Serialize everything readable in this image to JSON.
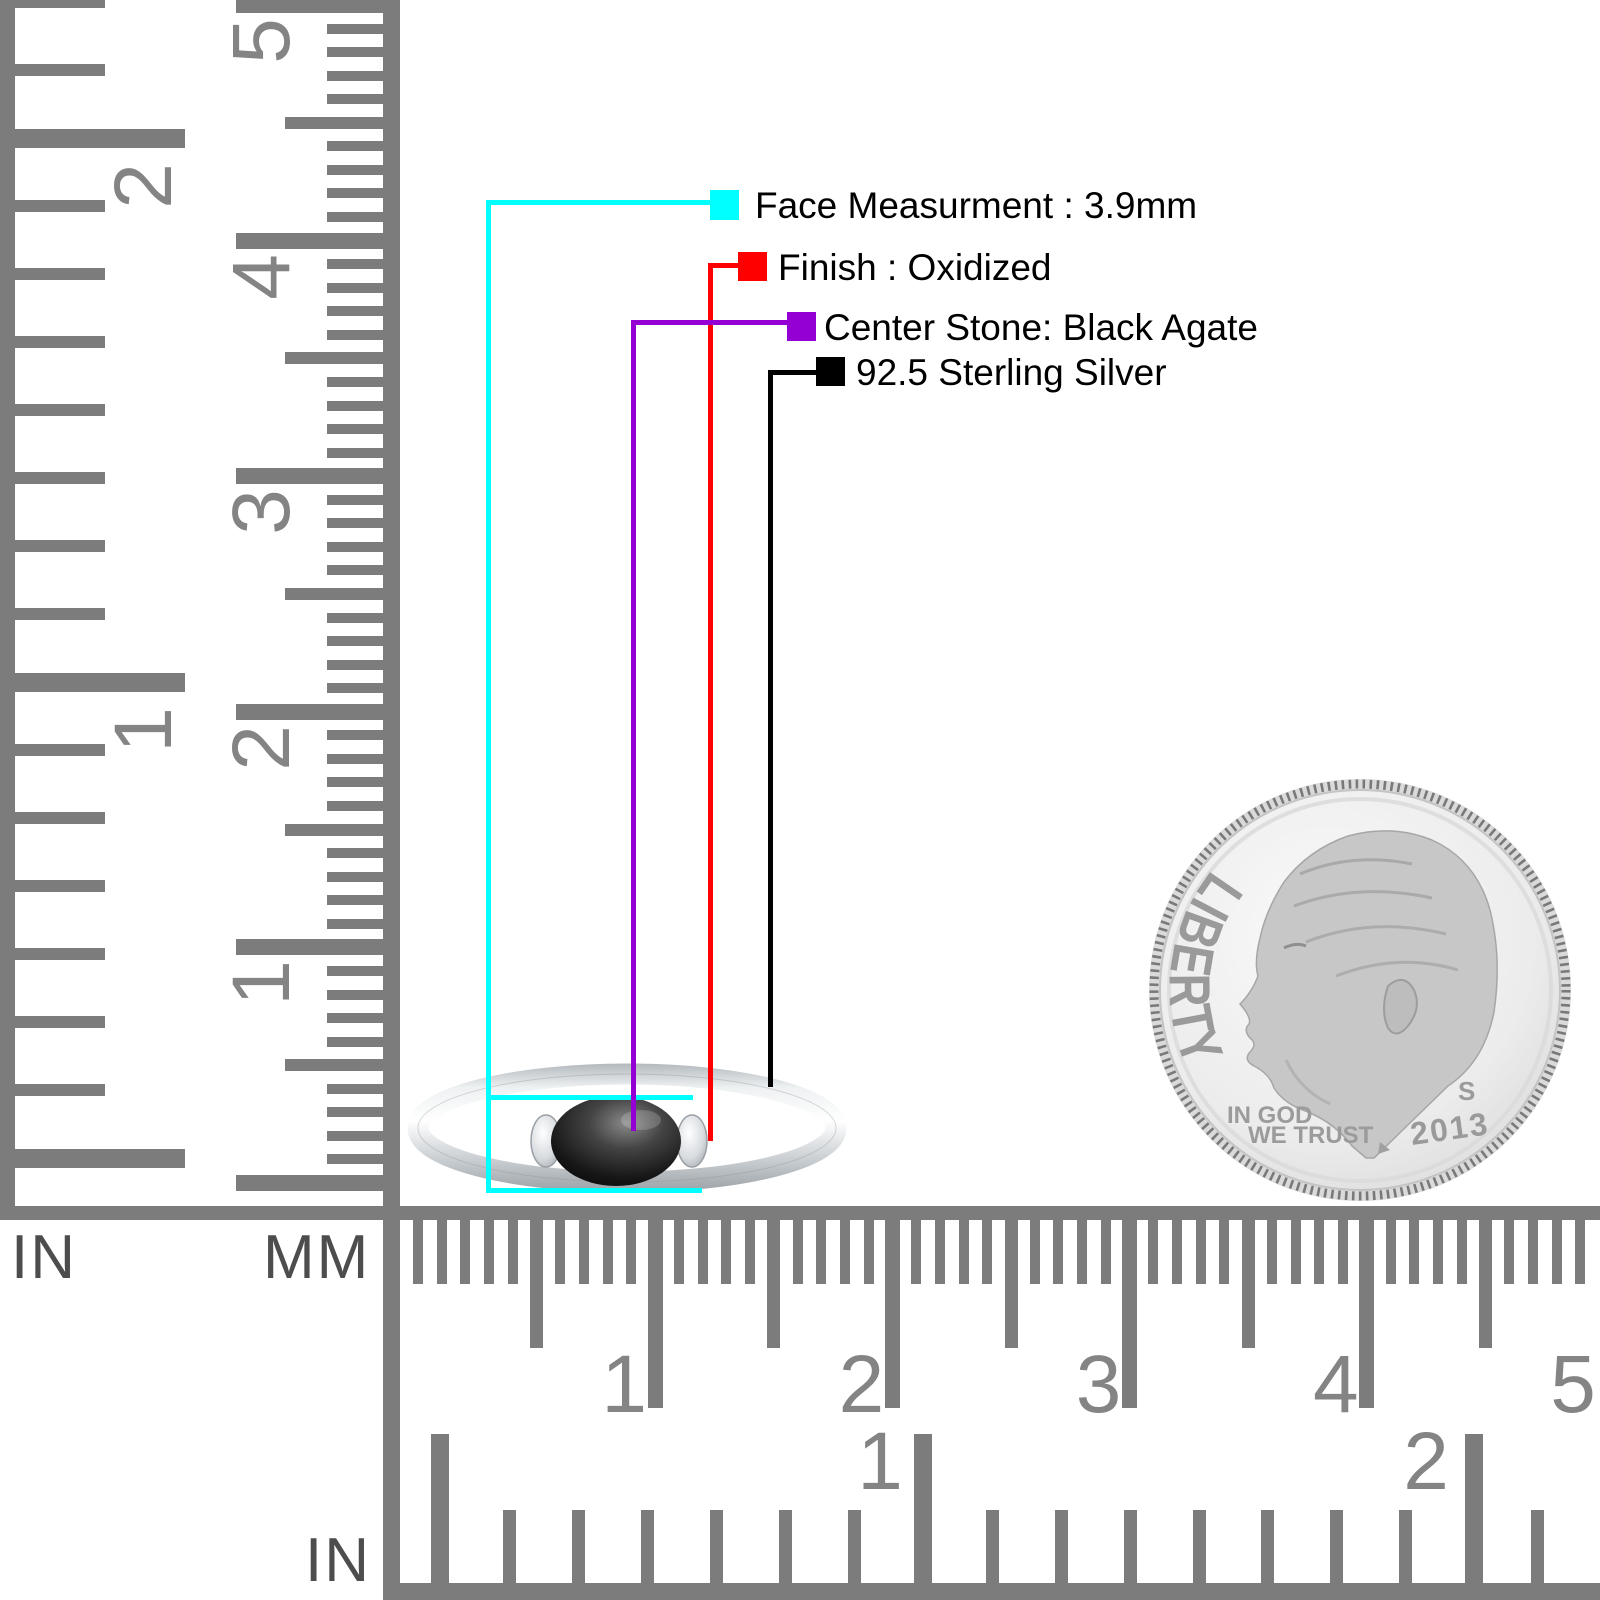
{
  "canvas": {
    "background": "#ffffff"
  },
  "callouts": {
    "text_color": "#000000",
    "items": [
      {
        "label": "Face Measurment : 3.9mm",
        "color": "#00ffff"
      },
      {
        "label": "Finish : Oxidized",
        "color": "#ff0000"
      },
      {
        "label": "Center Stone: Black Agate",
        "color": "#9400d3"
      },
      {
        "label": "92.5 Sterling Silver",
        "color": "#000000"
      }
    ]
  },
  "rulers": {
    "tick_color": "#7c7c7c",
    "number_color": "#848484",
    "unit_label_color": "#4d4d4d",
    "left_inch": {
      "unit": "IN",
      "numbers": [
        "2",
        "1"
      ]
    },
    "left_cm": {
      "unit": "MM",
      "numbers": [
        "5",
        "4",
        "3",
        "2",
        "1"
      ]
    },
    "bottom_cm": {
      "numbers": [
        "1",
        "2",
        "3",
        "4",
        "5"
      ]
    },
    "bottom_inch": {
      "unit": "IN",
      "numbers": [
        "1",
        "2"
      ]
    }
  },
  "coin": {
    "legend": "LIBERTY",
    "motto_line1": "IN GOD",
    "motto_line2": "WE TRUST",
    "mint_mark": "S",
    "year": "2013",
    "metal_color": "#e7e7e7",
    "relief_color": "#c7c7c7",
    "lettering_color": "#9a9a9a"
  },
  "ring": {
    "band_silver_light": "#f4f6f7",
    "band_silver_mid": "#c9ced2",
    "band_silver_dark": "#9aa0a5",
    "stone_black": "#0b0b0b",
    "stone_highlight": "#7a7a7a"
  }
}
